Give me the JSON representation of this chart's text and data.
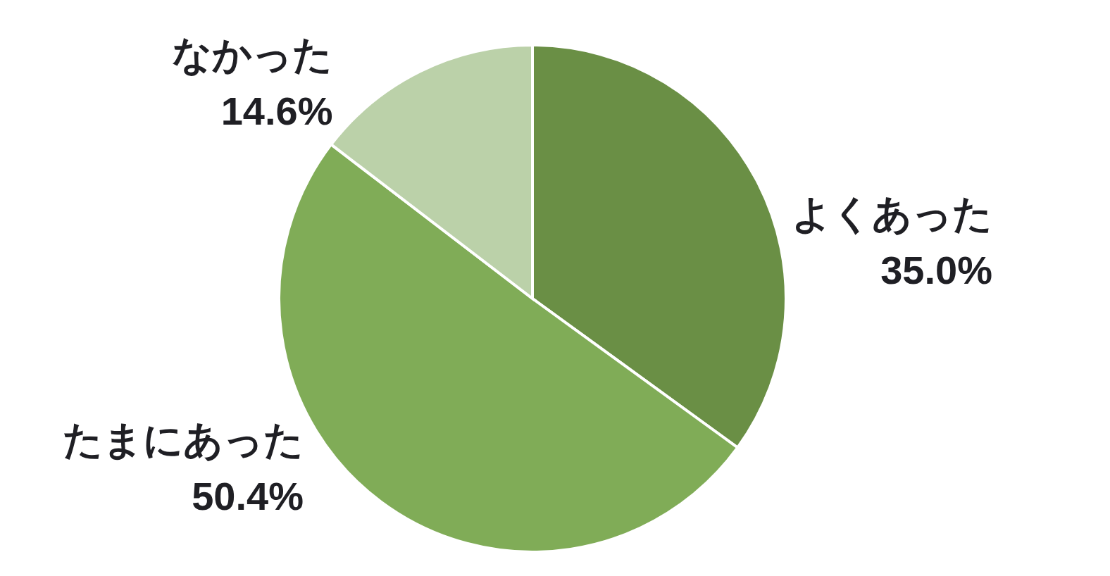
{
  "chart_data": {
    "type": "pie",
    "categories": [
      "よくあった",
      "たまにあった",
      "なかった"
    ],
    "values": [
      35.0,
      50.4,
      14.6
    ],
    "colors": [
      "#6a8f45",
      "#80ac57",
      "#bbd1a9"
    ],
    "value_labels": [
      "35.0%",
      "50.4%",
      "14.6%"
    ]
  }
}
